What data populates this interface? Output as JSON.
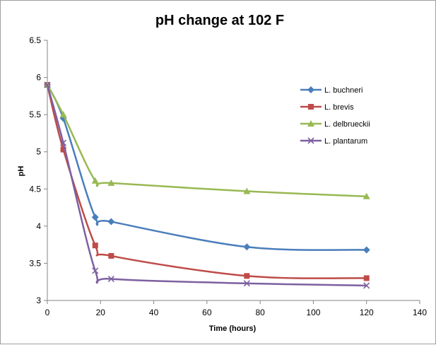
{
  "chart_data": {
    "type": "line",
    "title": "pH change at 102 F",
    "xlabel": "Time (hours)",
    "ylabel": "pH",
    "xlim": [
      0,
      140
    ],
    "ylim": [
      3,
      6.5
    ],
    "xticks": [
      0,
      20,
      40,
      60,
      80,
      100,
      120,
      140
    ],
    "yticks": [
      3,
      3.5,
      4,
      4.5,
      5,
      5.5,
      6,
      6.5
    ],
    "ytick_labels": [
      "3",
      "3.5",
      "4",
      "4.5",
      "5",
      "5.5",
      "6",
      "6.5"
    ],
    "grid": false,
    "legend_position": "right",
    "series": [
      {
        "name": "L. buchneri",
        "color": "#4a7ebb",
        "marker": "diamond",
        "x": [
          0,
          6,
          18,
          24,
          75,
          120
        ],
        "y": [
          5.9,
          5.45,
          4.12,
          4.06,
          3.72,
          3.68
        ]
      },
      {
        "name": "L. brevis",
        "color": "#be4b48",
        "marker": "square",
        "x": [
          0,
          6,
          18,
          24,
          75,
          120
        ],
        "y": [
          5.9,
          5.03,
          3.74,
          3.6,
          3.33,
          3.3
        ]
      },
      {
        "name": "L. delbrueckii",
        "color": "#98b954",
        "marker": "triangle",
        "x": [
          0,
          6,
          18,
          24,
          75,
          120
        ],
        "y": [
          5.9,
          5.5,
          4.61,
          4.58,
          4.47,
          4.4
        ]
      },
      {
        "name": "L. plantarum",
        "color": "#7d60a0",
        "marker": "x",
        "x": [
          0,
          6,
          18,
          24,
          75,
          120
        ],
        "y": [
          5.9,
          5.12,
          3.4,
          3.29,
          3.23,
          3.2
        ]
      }
    ]
  }
}
